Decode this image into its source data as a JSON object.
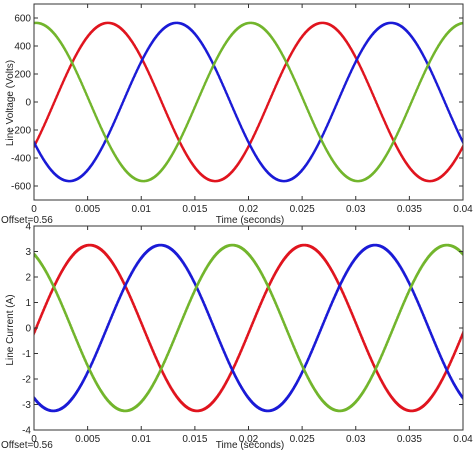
{
  "chart_data": [
    {
      "type": "line",
      "ylabel": "Line Voltage (Volts)",
      "xlabel": "Time (seconds)",
      "offset_note": "Offset=0.56",
      "xlim": [
        0,
        0.04
      ],
      "ylim": [
        -700,
        700
      ],
      "xticks": [
        0,
        0.005,
        0.01,
        0.015,
        0.02,
        0.025,
        0.03,
        0.035,
        0.04
      ],
      "xtick_labels": [
        "0",
        "0.005",
        "0.01",
        "0.015",
        "0.02",
        "0.025",
        "0.03",
        "0.035",
        "0.04"
      ],
      "yticks": [
        -600,
        -400,
        -200,
        0,
        200,
        400,
        600
      ],
      "ytick_labels": [
        "-600",
        "-400",
        "-200",
        "0",
        "200",
        "400",
        "600"
      ],
      "grid": false,
      "series": [
        {
          "color": "#e0141e",
          "amplitude": 565,
          "frequency_hz": 50,
          "peak_time": 0.0069,
          "ripple": 14
        },
        {
          "color": "#1a1ad6",
          "amplitude": 565,
          "frequency_hz": 50,
          "peak_time": 0.0133,
          "ripple": 14
        },
        {
          "color": "#72b52c",
          "amplitude": 565,
          "frequency_hz": 50,
          "peak_time": 0.0002,
          "ripple": 14
        }
      ]
    },
    {
      "type": "line",
      "ylabel": "Line Current (A)",
      "xlabel": "Time (seconds)",
      "offset_note": "Offset=0.56",
      "xlim": [
        0,
        0.04
      ],
      "ylim": [
        -4,
        4
      ],
      "xticks": [
        0,
        0.005,
        0.01,
        0.015,
        0.02,
        0.025,
        0.03,
        0.035,
        0.04
      ],
      "xtick_labels": [
        "0",
        "0.005",
        "0.01",
        "0.015",
        "0.02",
        "0.025",
        "0.03",
        "0.035",
        "0.04"
      ],
      "yticks": [
        -4,
        -3,
        -2,
        -1,
        0,
        1,
        2,
        3,
        4
      ],
      "ytick_labels": [
        "-4",
        "-3",
        "-2",
        "-1",
        "0",
        "1",
        "2",
        "3",
        "4"
      ],
      "grid": false,
      "series": [
        {
          "color": "#e0141e",
          "amplitude": 3.25,
          "frequency_hz": 50,
          "peak_time": 0.0052,
          "ripple": 0.09
        },
        {
          "color": "#1a1ad6",
          "amplitude": 3.25,
          "frequency_hz": 50,
          "peak_time": 0.0118,
          "ripple": 0.09
        },
        {
          "color": "#72b52c",
          "amplitude": 3.25,
          "frequency_hz": 50,
          "peak_time": 0.0185,
          "ripple": 0.09
        }
      ]
    }
  ]
}
